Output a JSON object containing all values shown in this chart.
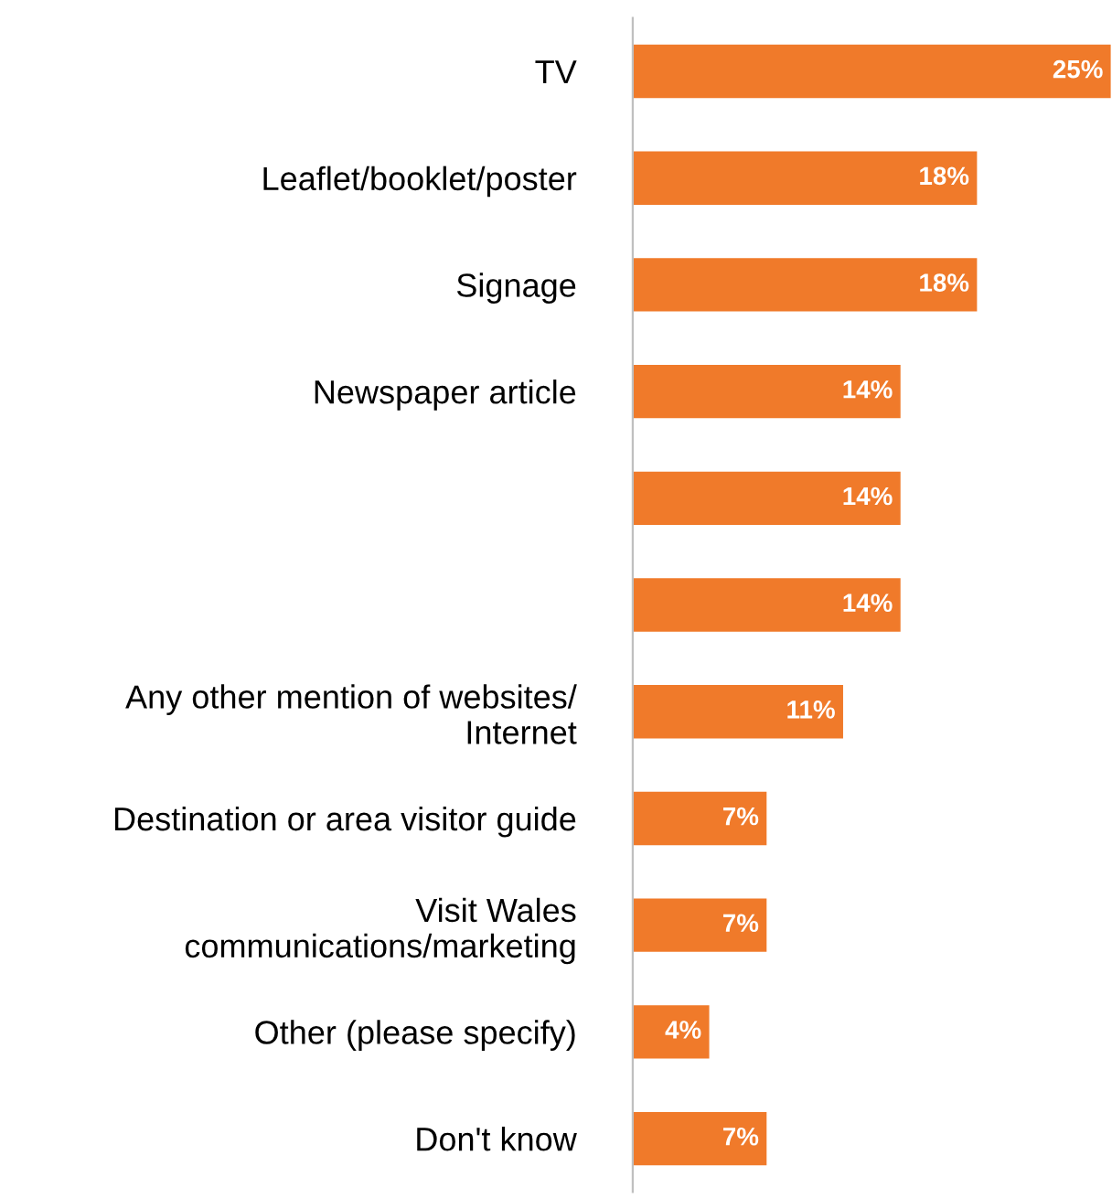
{
  "chart_data": {
    "type": "bar",
    "orientation": "horizontal",
    "categories": [
      "TV",
      "Leaflet/booklet/poster",
      "Signage",
      "Newspaper article",
      null,
      null,
      "Any other mention of websites/\nInternet",
      "Destination or area visitor guide",
      "Visit Wales\ncommunications/marketing",
      "Other (please specify)",
      "Don't know"
    ],
    "values": [
      25,
      18,
      18,
      14,
      14,
      14,
      11,
      7,
      7,
      4,
      7
    ],
    "value_labels": [
      "25%",
      "18%",
      "18%",
      "14%",
      "14%",
      "14%",
      "11%",
      "7%",
      "7%",
      "4%",
      "7%"
    ],
    "color": "#f07a2a",
    "grid": false,
    "legend": false
  }
}
